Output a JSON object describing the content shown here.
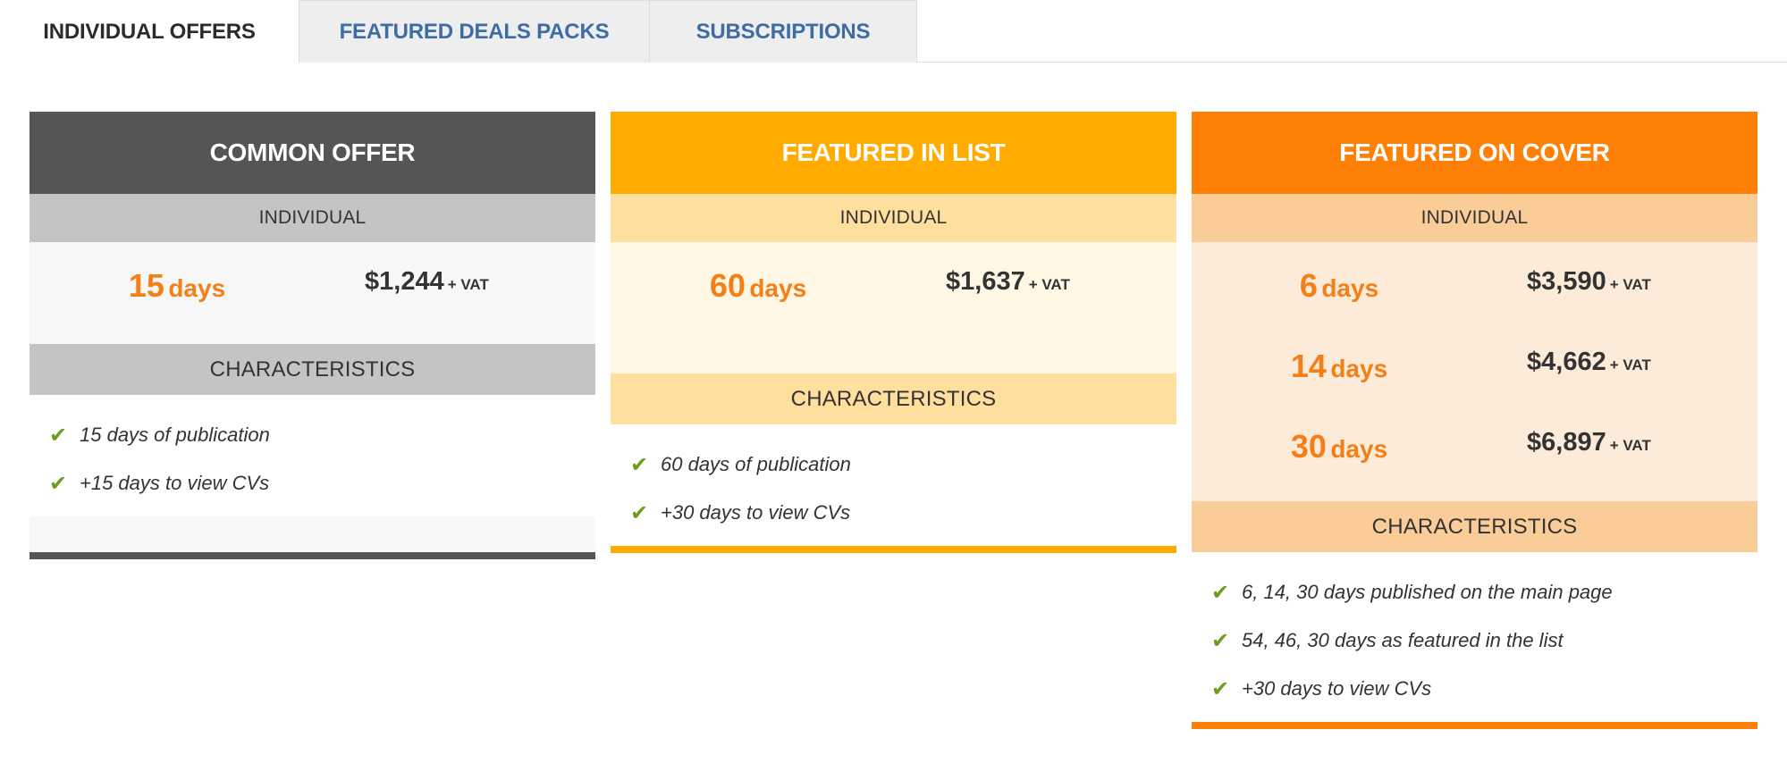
{
  "tabs": [
    {
      "label": "INDIVIDUAL OFFERS",
      "active": true
    },
    {
      "label": "FEATURED DEALS PACKS",
      "active": false
    },
    {
      "label": "SUBSCRIPTIONS",
      "active": false
    }
  ],
  "colors": {
    "tab_link": "#3d6ca6",
    "accent_orange": "#f57f17",
    "check_green": "#6d9d1d",
    "common_header": "#555555",
    "list_header": "#ffab00",
    "cover_header": "#ff8006"
  },
  "check_icon": "✔",
  "cards": [
    {
      "title": "COMMON OFFER",
      "subtitle": "INDIVIDUAL",
      "offers": [
        {
          "days": "15",
          "unit": "days",
          "price": "$1,244",
          "vat": "+ VAT"
        }
      ],
      "characteristics_label": "CHARACTERISTICS",
      "features": [
        "15 days of publication",
        "+15 days to view CVs"
      ]
    },
    {
      "title": "FEATURED IN LIST",
      "subtitle": "INDIVIDUAL",
      "offers": [
        {
          "days": "60",
          "unit": "days",
          "price": "$1,637",
          "vat": "+ VAT"
        }
      ],
      "characteristics_label": "CHARACTERISTICS",
      "features": [
        "60 days of publication",
        "+30 days to view CVs"
      ]
    },
    {
      "title": "FEATURED ON COVER",
      "subtitle": "INDIVIDUAL",
      "offers": [
        {
          "days": "6",
          "unit": "days",
          "price": "$3,590",
          "vat": "+ VAT"
        },
        {
          "days": "14",
          "unit": "days",
          "price": "$4,662",
          "vat": "+ VAT"
        },
        {
          "days": "30",
          "unit": "days",
          "price": "$6,897",
          "vat": "+ VAT"
        }
      ],
      "characteristics_label": "CHARACTERISTICS",
      "features": [
        "6, 14, 30 days published on the main page",
        "54, 46, 30 days as featured in the list",
        "+30 days to view CVs"
      ]
    }
  ]
}
